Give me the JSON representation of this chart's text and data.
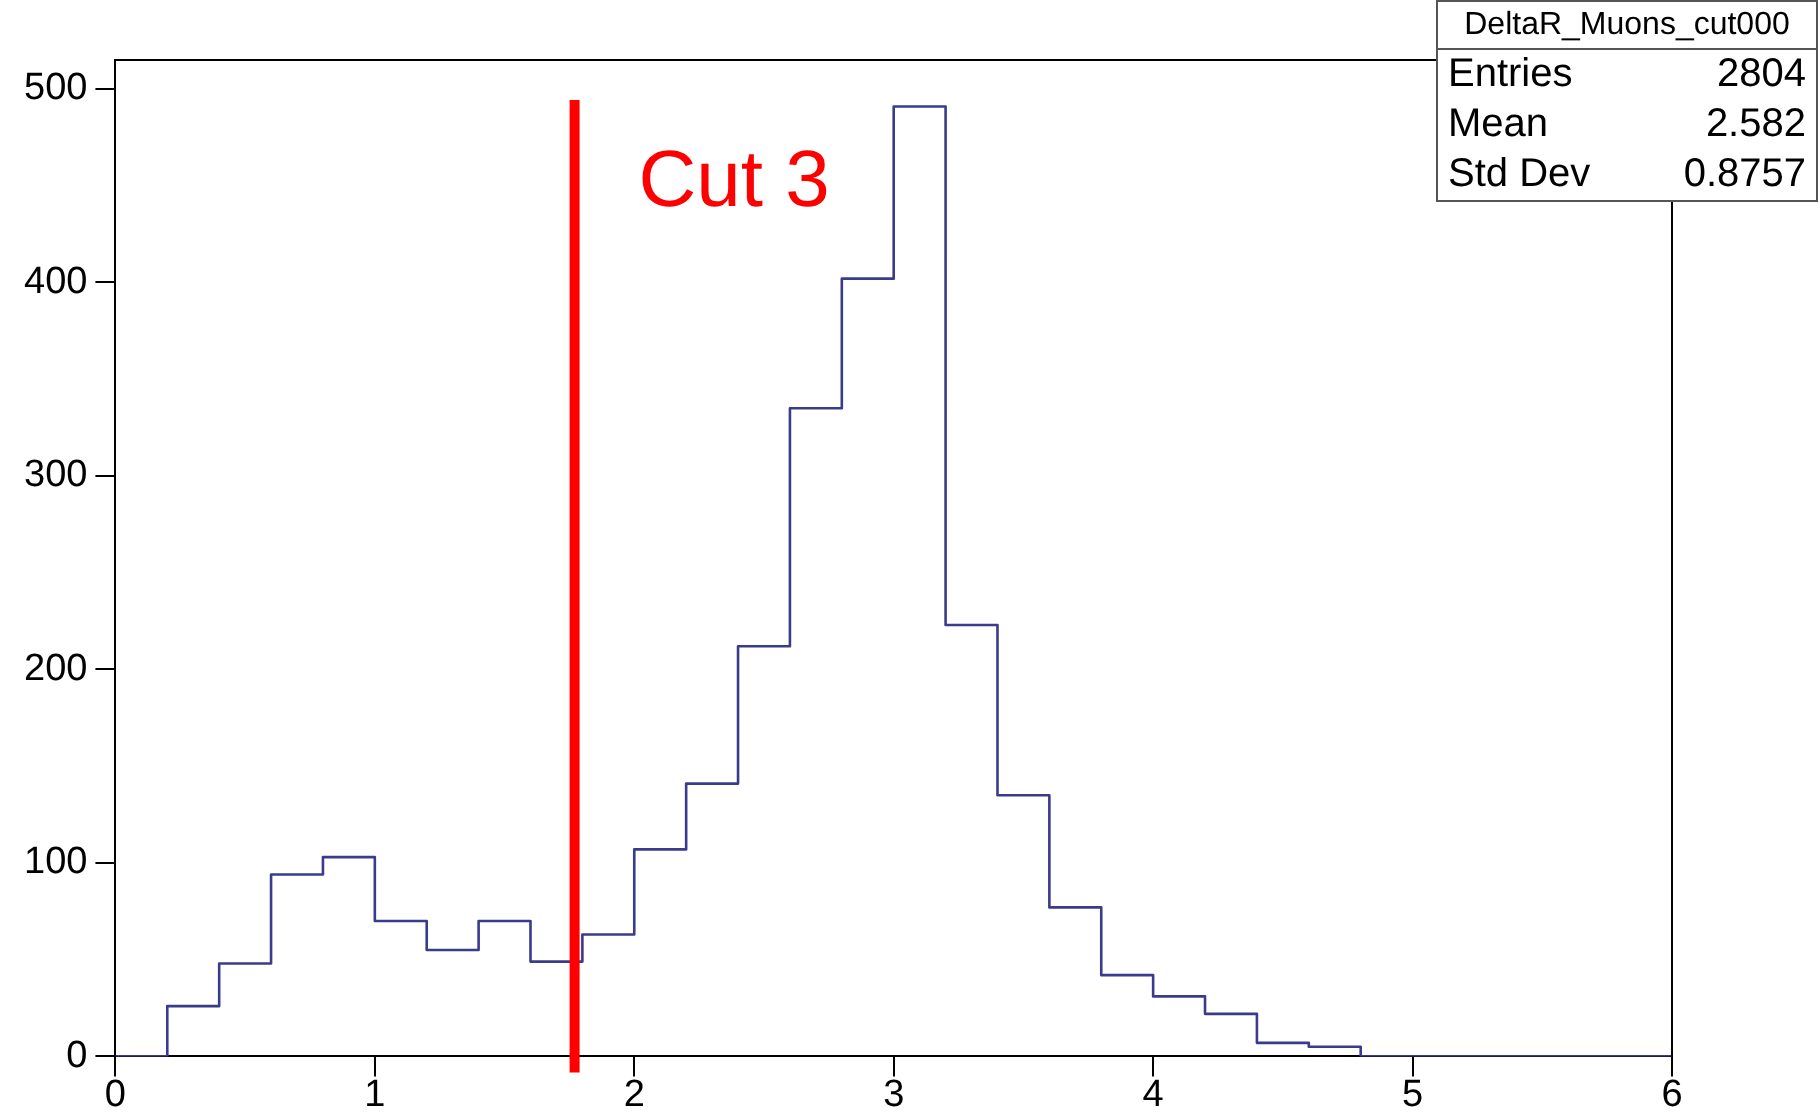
{
  "chart_data": {
    "type": "histogram",
    "title": "DeltaR_Muons_cut000",
    "bins": [
      0,
      0.2,
      0.4,
      0.6,
      0.8,
      1,
      1.2,
      1.4,
      1.6,
      1.8,
      2,
      2.2,
      2.4,
      2.6,
      2.8,
      3,
      3.2,
      3.4,
      3.6,
      3.8,
      4,
      4.2,
      4.4,
      4.6,
      4.8,
      5,
      5.2,
      5.4,
      5.6,
      5.8,
      6
    ],
    "values": [
      0,
      26,
      48,
      94,
      103,
      70,
      55,
      70,
      49,
      63,
      107,
      141,
      212,
      335,
      402,
      491,
      223,
      135,
      77,
      42,
      31,
      22,
      7,
      5,
      0,
      0,
      0,
      0,
      0,
      0
    ],
    "color": "#3b3b8c",
    "xlim": [
      0,
      6
    ],
    "xticks": [
      0,
      1,
      2,
      3,
      4,
      5,
      6
    ],
    "ylim": [
      0,
      515
    ],
    "yticks": [
      0,
      100,
      200,
      300,
      400,
      500
    ],
    "grid": false,
    "legend": false,
    "ref_lines": [
      {
        "axis": "x",
        "value": 1.77,
        "label": "Cut 3",
        "color": "#ff0000"
      }
    ],
    "annotations": [
      "Entries 2804",
      "Mean 2.582",
      "Std Dev 0.8757"
    ]
  }
}
